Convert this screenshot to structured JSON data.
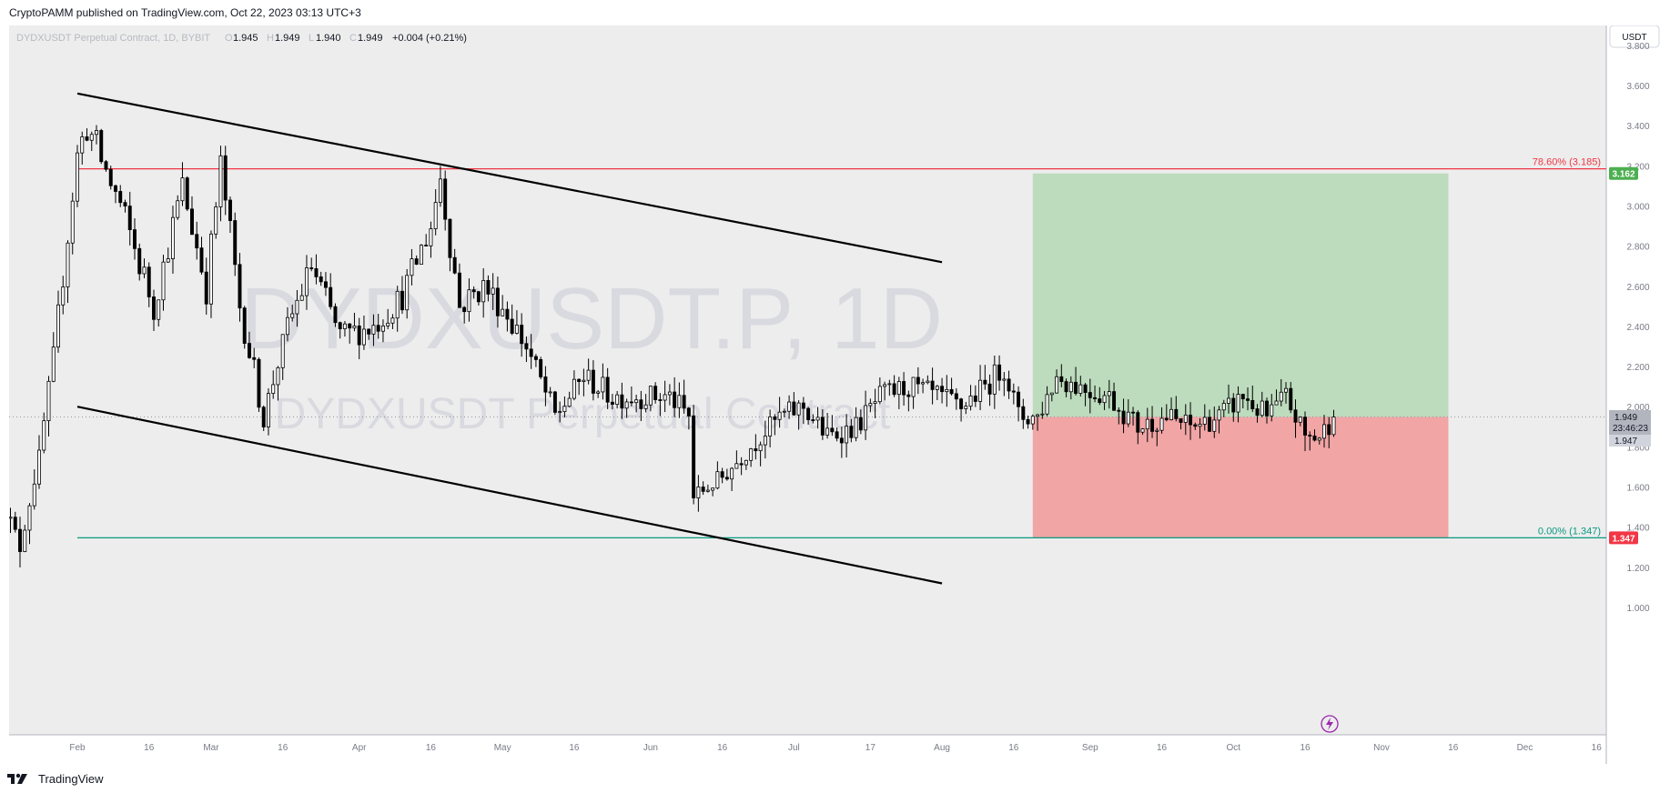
{
  "header": {
    "publisher_line": "CryptoPAMM published on TradingView.com, Oct 22, 2023 03:13 UTC+3"
  },
  "legend": {
    "symbol_desc": "DYDXUSDT Perpetual Contract, 1D, BYBIT",
    "o_label": "O",
    "o_value": "1.945",
    "h_label": "H",
    "h_value": "1.949",
    "l_label": "L",
    "l_value": "1.940",
    "c_label": "C",
    "c_value": "1.949",
    "change": "+0.004 (+0.21%)"
  },
  "currency_button": "USDT",
  "watermark": {
    "line1": "DYDXUSDT.P, 1D",
    "line2": "DYDXUSDT Perpetual Contract"
  },
  "footer": {
    "brand": "TradingView"
  },
  "price_badges": {
    "current_price": "1.949",
    "countdown": "23:46:23",
    "secondary_price": "1.947",
    "target_price": "3.162",
    "stop_price": "1.347"
  },
  "fib_levels": [
    {
      "label": "78.60% (3.185)",
      "price": 3.185,
      "color": "#f23645"
    },
    {
      "label": "0.00% (1.347)",
      "price": 1.347,
      "color": "#089981"
    }
  ],
  "colors": {
    "background": "#ededed",
    "candle": "#000000",
    "profit_zone": "#bddbbd",
    "loss_zone": "#f1a5a5",
    "target_badge": "#4caf50",
    "stop_badge": "#f23645",
    "grid_text": "#787b86",
    "alert_icon": "#9c27b0"
  },
  "chart_data": {
    "type": "candlestick",
    "symbol": "DYDXUSDT.P",
    "exchange": "BYBIT",
    "interval": "1D",
    "ylim": [
      0.85,
      3.85
    ],
    "y_ticks": [
      "1.000",
      "1.200",
      "1.400",
      "1.600",
      "1.800",
      "2.000",
      "2.200",
      "2.400",
      "2.600",
      "2.800",
      "3.000",
      "3.200",
      "3.400",
      "3.600",
      "3.800"
    ],
    "x_ticks": [
      {
        "label": "16",
        "date": "2023-01-16"
      },
      {
        "label": "Feb",
        "date": "2023-02-01"
      },
      {
        "label": "16",
        "date": "2023-02-16"
      },
      {
        "label": "Mar",
        "date": "2023-03-01"
      },
      {
        "label": "16",
        "date": "2023-03-16"
      },
      {
        "label": "Apr",
        "date": "2023-04-01"
      },
      {
        "label": "16",
        "date": "2023-04-16"
      },
      {
        "label": "May",
        "date": "2023-05-01"
      },
      {
        "label": "16",
        "date": "2023-05-16"
      },
      {
        "label": "Jun",
        "date": "2023-06-01"
      },
      {
        "label": "16",
        "date": "2023-06-16"
      },
      {
        "label": "Jul",
        "date": "2023-07-01"
      },
      {
        "label": "17",
        "date": "2023-07-17"
      },
      {
        "label": "Aug",
        "date": "2023-08-01"
      },
      {
        "label": "16",
        "date": "2023-08-16"
      },
      {
        "label": "Sep",
        "date": "2023-09-01"
      },
      {
        "label": "16",
        "date": "2023-09-16"
      },
      {
        "label": "Oct",
        "date": "2023-10-01"
      },
      {
        "label": "16",
        "date": "2023-10-16"
      },
      {
        "label": "Nov",
        "date": "2023-11-01"
      },
      {
        "label": "16",
        "date": "2023-11-16"
      },
      {
        "label": "Dec",
        "date": "2023-12-01"
      },
      {
        "label": "16",
        "date": "2023-12-16"
      }
    ],
    "current_price": 1.949,
    "close_series_approx": [
      {
        "date": "2023-01-16",
        "close": 1.55
      },
      {
        "date": "2023-01-20",
        "close": 1.3
      },
      {
        "date": "2023-01-24",
        "close": 1.75
      },
      {
        "date": "2023-01-27",
        "close": 2.25
      },
      {
        "date": "2023-02-01",
        "close": 3.25
      },
      {
        "date": "2023-02-03",
        "close": 3.4
      },
      {
        "date": "2023-02-10",
        "close": 3.0
      },
      {
        "date": "2023-02-17",
        "close": 2.5
      },
      {
        "date": "2023-02-23",
        "close": 3.1
      },
      {
        "date": "2023-02-28",
        "close": 2.6
      },
      {
        "date": "2023-03-03",
        "close": 3.2
      },
      {
        "date": "2023-03-07",
        "close": 2.5
      },
      {
        "date": "2023-03-12",
        "close": 1.95
      },
      {
        "date": "2023-03-17",
        "close": 2.4
      },
      {
        "date": "2023-03-22",
        "close": 2.7
      },
      {
        "date": "2023-03-28",
        "close": 2.35
      },
      {
        "date": "2023-04-04",
        "close": 2.4
      },
      {
        "date": "2023-04-10",
        "close": 2.55
      },
      {
        "date": "2023-04-16",
        "close": 2.9
      },
      {
        "date": "2023-04-18",
        "close": 3.15
      },
      {
        "date": "2023-04-22",
        "close": 2.5
      },
      {
        "date": "2023-04-27",
        "close": 2.6
      },
      {
        "date": "2023-05-01",
        "close": 2.5
      },
      {
        "date": "2023-05-06",
        "close": 2.3
      },
      {
        "date": "2023-05-12",
        "close": 1.95
      },
      {
        "date": "2023-05-18",
        "close": 2.15
      },
      {
        "date": "2023-05-24",
        "close": 2.05
      },
      {
        "date": "2023-05-30",
        "close": 2.05
      },
      {
        "date": "2023-06-05",
        "close": 2.05
      },
      {
        "date": "2023-06-09",
        "close": 1.95
      },
      {
        "date": "2023-06-10",
        "close": 1.55
      },
      {
        "date": "2023-06-16",
        "close": 1.65
      },
      {
        "date": "2023-06-22",
        "close": 1.8
      },
      {
        "date": "2023-06-28",
        "close": 1.95
      },
      {
        "date": "2023-07-03",
        "close": 2.0
      },
      {
        "date": "2023-07-08",
        "close": 1.85
      },
      {
        "date": "2023-07-14",
        "close": 1.9
      },
      {
        "date": "2023-07-19",
        "close": 2.05
      },
      {
        "date": "2023-07-25",
        "close": 2.1
      },
      {
        "date": "2023-07-31",
        "close": 2.05
      },
      {
        "date": "2023-08-05",
        "close": 2.0
      },
      {
        "date": "2023-08-10",
        "close": 2.1
      },
      {
        "date": "2023-08-14",
        "close": 2.2
      },
      {
        "date": "2023-08-17",
        "close": 1.95
      },
      {
        "date": "2023-08-21",
        "close": 1.95
      },
      {
        "date": "2023-08-25",
        "close": 2.15
      },
      {
        "date": "2023-08-30",
        "close": 2.1
      },
      {
        "date": "2023-09-05",
        "close": 2.05
      },
      {
        "date": "2023-09-11",
        "close": 1.9
      },
      {
        "date": "2023-09-17",
        "close": 1.95
      },
      {
        "date": "2023-09-22",
        "close": 1.9
      },
      {
        "date": "2023-09-28",
        "close": 1.95
      },
      {
        "date": "2023-10-03",
        "close": 2.05
      },
      {
        "date": "2023-10-08",
        "close": 1.95
      },
      {
        "date": "2023-10-12",
        "close": 2.05
      },
      {
        "date": "2023-10-16",
        "close": 1.85
      },
      {
        "date": "2023-10-19",
        "close": 1.85
      },
      {
        "date": "2023-10-22",
        "close": 1.949
      }
    ],
    "descending_channel": {
      "upper": [
        {
          "date": "2023-02-01",
          "price": 3.56
        },
        {
          "date": "2023-08-01",
          "price": 2.72
        }
      ],
      "lower": [
        {
          "date": "2023-02-01",
          "price": 2.0
        },
        {
          "date": "2023-08-01",
          "price": 1.12
        }
      ]
    },
    "position": {
      "entry": 1.949,
      "target": 3.162,
      "stop": 1.347,
      "start_date": "2023-08-20",
      "end_date": "2023-11-15"
    }
  }
}
